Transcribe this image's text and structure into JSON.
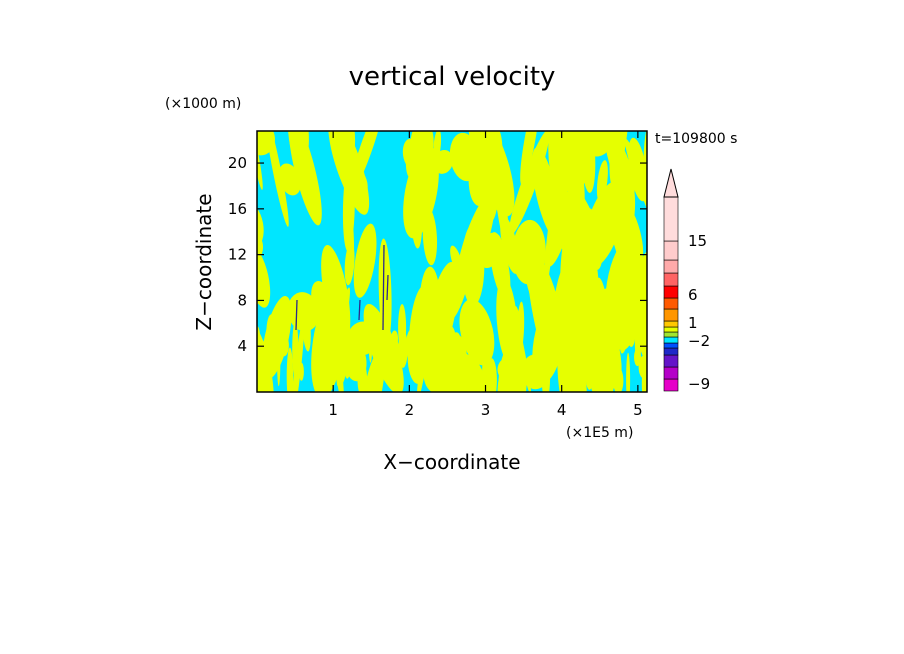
{
  "chart_data": {
    "type": "heatmap",
    "title": "vertical velocity",
    "xlabel": "X−coordinate",
    "ylabel": "Z−coordinate",
    "x_unit": "(×1E5 m)",
    "y_unit": "(×1000 m)",
    "time_label": "t=109800 s",
    "xlim": [
      0,
      5.12
    ],
    "ylim": [
      0,
      22.8
    ],
    "x_ticks": [
      1,
      2,
      3,
      4,
      5
    ],
    "y_ticks": [
      4,
      8,
      12,
      16,
      20
    ],
    "colorbar": {
      "labels": [
        "15",
        "6",
        "1",
        "−2",
        "−9"
      ],
      "label_values": [
        15,
        6,
        1,
        -2,
        -9
      ],
      "colors_bottom_to_top": [
        "#e600c8",
        "#b400c8",
        "#6414c8",
        "#1e28c8",
        "#0050ff",
        "#00e6ff",
        "#a0e632",
        "#e6ff00",
        "#ffc800",
        "#ff9600",
        "#ff5a00",
        "#ff0000",
        "#ff6464",
        "#ffaaaa",
        "#ffcccc",
        "#ffdcdc"
      ],
      "extend": "max"
    },
    "dominant_colors": {
      "positive": "#e6ff00",
      "negative": "#00e6ff"
    },
    "grid": false,
    "legend": "colorbar-right"
  }
}
